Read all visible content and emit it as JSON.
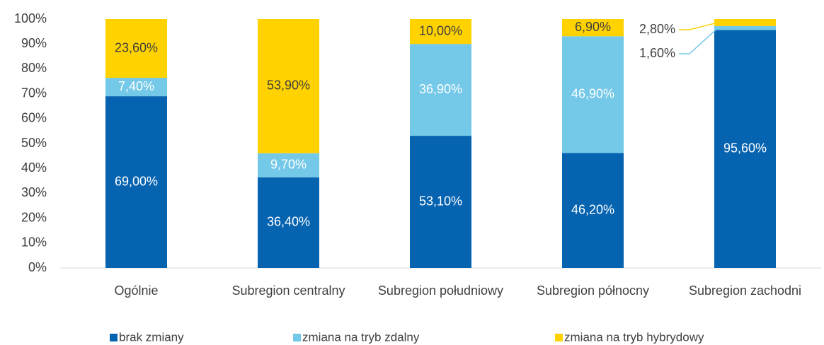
{
  "chart_data": {
    "type": "stacked_bar",
    "categories": [
      "Ogólnie",
      "Subregion centralny",
      "Subregion południowy",
      "Subregion północny",
      "Subregion zachodni"
    ],
    "series": [
      {
        "name": "brak zmiany",
        "color": "#0563b0",
        "values": [
          69.0,
          36.4,
          53.1,
          46.2,
          95.6
        ],
        "value_labels": [
          "69,00%",
          "36,40%",
          "53,10%",
          "46,20%",
          "95,60%"
        ]
      },
      {
        "name": "zmiana na tryb zdalny",
        "color": "#74c8e8",
        "values": [
          7.4,
          9.7,
          36.9,
          46.9,
          1.6
        ],
        "value_labels": [
          "7,40%",
          "9,70%",
          "36,90%",
          "46,90%",
          "1,60%"
        ]
      },
      {
        "name": "zmiana na tryb hybrydowy",
        "color": "#ffd200",
        "values": [
          23.6,
          53.9,
          10.0,
          6.9,
          2.8
        ],
        "value_labels": [
          "23,60%",
          "53,90%",
          "10,00%",
          "6,90%",
          "2,80%"
        ]
      }
    ],
    "ylim": [
      0,
      100
    ],
    "yticks": [
      {
        "value": 0,
        "label": "0%"
      },
      {
        "value": 10,
        "label": "10%"
      },
      {
        "value": 20,
        "label": "20%"
      },
      {
        "value": 30,
        "label": "30%"
      },
      {
        "value": 40,
        "label": "40%"
      },
      {
        "value": 50,
        "label": "50%"
      },
      {
        "value": 60,
        "label": "60%"
      },
      {
        "value": 70,
        "label": "70%"
      },
      {
        "value": 80,
        "label": "80%"
      },
      {
        "value": 90,
        "label": "90%"
      },
      {
        "value": 100,
        "label": "100%"
      }
    ],
    "grid": false,
    "legend": "bottom"
  }
}
